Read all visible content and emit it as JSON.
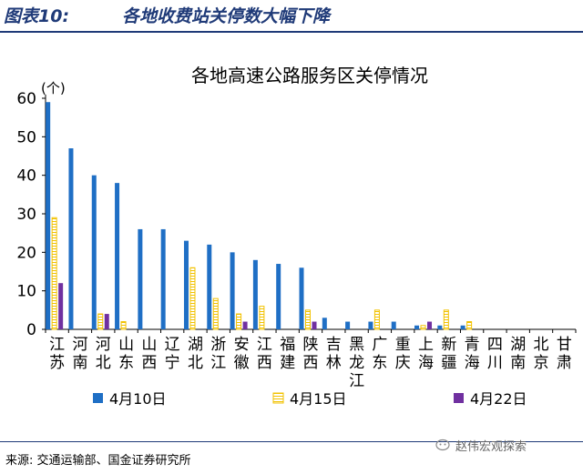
{
  "figure": {
    "number": "图表10:",
    "title": "各地收费站关停数大幅下降"
  },
  "source": "来源: 交通运输部、国金证券研究所",
  "watermark": "赵伟宏观探索",
  "chart_data": {
    "type": "bar",
    "title": "各地高速公路服务区关停情况",
    "unit": "(个)",
    "ylim": [
      0,
      60
    ],
    "yticks": [
      0,
      10,
      20,
      30,
      40,
      50,
      60
    ],
    "grid": false,
    "legend_position": "bottom",
    "categories": [
      "江苏",
      "河南",
      "河北",
      "山东",
      "山西",
      "辽宁",
      "湖北",
      "浙江",
      "安徽",
      "江西",
      "福建",
      "陕西",
      "吉林",
      "黑龙江",
      "广东",
      "重庆",
      "上海",
      "新疆",
      "青海",
      "四川",
      "湖南",
      "北京",
      "甘肃"
    ],
    "series": [
      {
        "name": "4月10日",
        "color": "#1f6fc5",
        "style": "solid",
        "values": [
          59,
          47,
          40,
          38,
          26,
          26,
          23,
          22,
          20,
          18,
          17,
          16,
          3,
          2,
          2,
          2,
          1,
          1,
          1,
          0,
          0,
          0,
          0
        ]
      },
      {
        "name": "4月15日",
        "color": "#f2c200",
        "style": "hatched",
        "values": [
          29,
          0,
          4,
          2,
          0,
          0,
          16,
          8,
          4,
          6,
          0,
          5,
          0,
          0,
          5,
          0,
          1,
          5,
          2,
          0,
          0,
          0,
          0
        ]
      },
      {
        "name": "4月22日",
        "color": "#7030a0",
        "style": "solid",
        "values": [
          12,
          0,
          4,
          0,
          0,
          0,
          0,
          0,
          2,
          0,
          0,
          2,
          0,
          0,
          0,
          0,
          2,
          0,
          0,
          0,
          0,
          0,
          0
        ]
      }
    ]
  }
}
